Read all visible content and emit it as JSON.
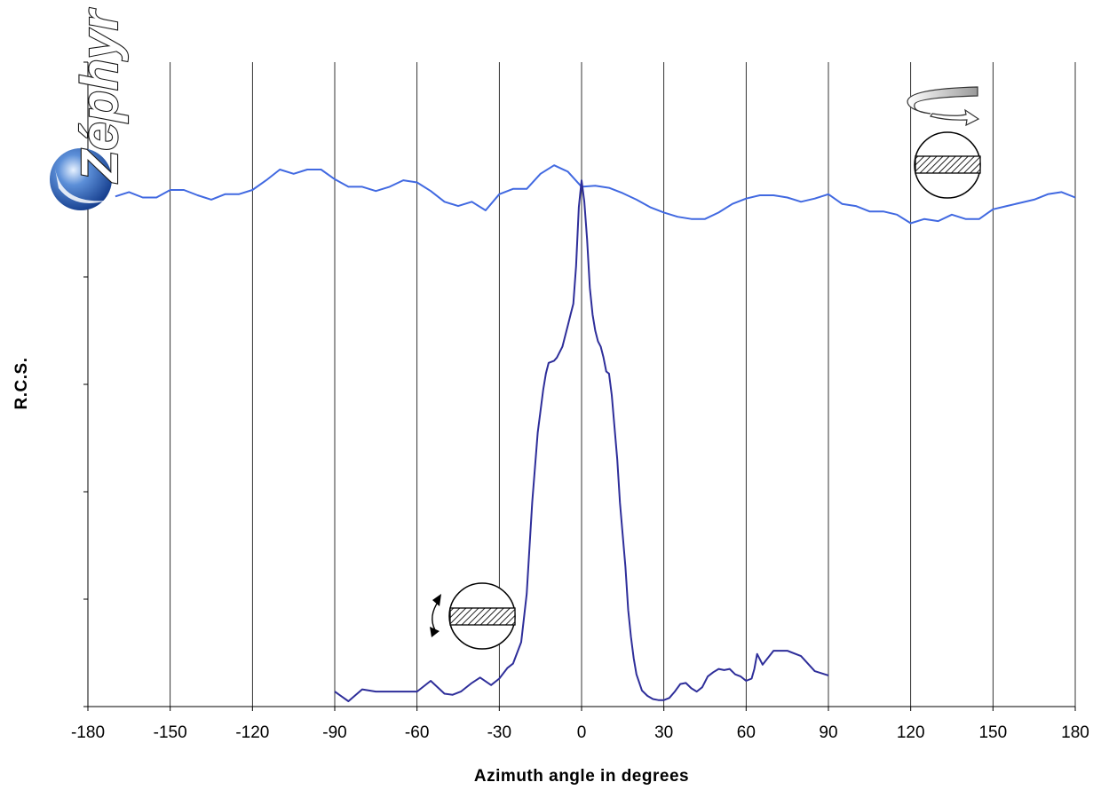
{
  "chart_data": {
    "type": "line",
    "title": "",
    "xlabel": "Azimuth angle in degrees",
    "ylabel": "R.C.S.",
    "xlim": [
      -180,
      180
    ],
    "ylim": [
      0,
      6
    ],
    "x_ticks": [
      -180,
      -150,
      -120,
      -90,
      -60,
      -30,
      0,
      30,
      60,
      90,
      120,
      150,
      180
    ],
    "y_ticks": [
      0,
      1,
      2,
      3,
      4,
      5,
      6
    ],
    "grid": "vertical",
    "legend": "none",
    "series": [
      {
        "color": "#4169e1",
        "x": [
          -170,
          -165,
          -160,
          -155,
          -150,
          -145,
          -140,
          -135,
          -130,
          -125,
          -120,
          -115,
          -110,
          -105,
          -100,
          -95,
          -90,
          -85,
          -80,
          -75,
          -70,
          -65,
          -60,
          -55,
          -50,
          -45,
          -40,
          -35,
          -30,
          -25,
          -20,
          -15,
          -10,
          -5,
          0,
          5,
          10,
          15,
          20,
          25,
          30,
          35,
          40,
          45,
          50,
          55,
          60,
          65,
          70,
          75,
          80,
          85,
          90,
          95,
          100,
          105,
          110,
          115,
          120,
          125,
          130,
          135,
          140,
          145,
          150,
          155,
          160,
          165,
          170,
          175,
          180
        ],
        "values": [
          4.75,
          4.79,
          4.74,
          4.74,
          4.81,
          4.81,
          4.76,
          4.72,
          4.77,
          4.77,
          4.81,
          4.9,
          5.0,
          4.96,
          5.0,
          5.0,
          4.91,
          4.84,
          4.84,
          4.8,
          4.84,
          4.9,
          4.88,
          4.8,
          4.7,
          4.66,
          4.7,
          4.62,
          4.77,
          4.82,
          4.82,
          4.96,
          5.04,
          4.98,
          4.84,
          4.85,
          4.83,
          4.78,
          4.72,
          4.65,
          4.6,
          4.56,
          4.54,
          4.54,
          4.6,
          4.68,
          4.73,
          4.76,
          4.76,
          4.74,
          4.7,
          4.73,
          4.77,
          4.68,
          4.66,
          4.61,
          4.61,
          4.58,
          4.5,
          4.54,
          4.52,
          4.58,
          4.54,
          4.54,
          4.63,
          4.66,
          4.69,
          4.72,
          4.77,
          4.79,
          4.74
        ]
      },
      {
        "color": "#2e2e9a",
        "x": [
          -90,
          -85,
          -80,
          -75,
          -70,
          -65,
          -60,
          -55,
          -50,
          -47,
          -44,
          -40,
          -37,
          -33,
          -30,
          -27,
          -25,
          -22,
          -20,
          -18,
          -16,
          -15,
          -14,
          -13,
          -12,
          -10,
          -9,
          -7,
          -6,
          -5,
          -4,
          -3,
          -2,
          -1,
          0,
          1,
          2,
          3,
          4,
          5,
          6,
          7,
          8,
          9,
          10,
          11,
          12,
          13,
          14,
          15,
          16,
          17,
          18,
          19,
          20,
          22,
          24,
          26,
          28,
          30,
          32,
          34,
          36,
          38,
          40,
          42,
          44,
          46,
          48,
          50,
          52,
          54,
          56,
          58,
          60,
          62,
          63,
          64,
          66,
          70,
          75,
          80,
          85,
          90
        ],
        "values": [
          0.14,
          0.05,
          0.16,
          0.14,
          0.14,
          0.14,
          0.14,
          0.24,
          0.12,
          0.11,
          0.14,
          0.22,
          0.27,
          0.2,
          0.26,
          0.36,
          0.4,
          0.6,
          1.05,
          1.9,
          2.55,
          2.75,
          2.95,
          3.1,
          3.2,
          3.22,
          3.25,
          3.35,
          3.45,
          3.55,
          3.65,
          3.75,
          4.1,
          4.65,
          4.9,
          4.7,
          4.35,
          3.9,
          3.65,
          3.5,
          3.4,
          3.35,
          3.25,
          3.12,
          3.1,
          2.9,
          2.6,
          2.3,
          1.9,
          1.6,
          1.3,
          0.9,
          0.65,
          0.45,
          0.3,
          0.15,
          0.1,
          0.07,
          0.06,
          0.06,
          0.08,
          0.14,
          0.21,
          0.22,
          0.17,
          0.14,
          0.18,
          0.28,
          0.32,
          0.35,
          0.34,
          0.35,
          0.3,
          0.28,
          0.24,
          0.26,
          0.35,
          0.49,
          0.39,
          0.52,
          0.52,
          0.47,
          0.33,
          0.29
        ]
      }
    ]
  },
  "logo": {
    "text": "Zéphyr"
  }
}
